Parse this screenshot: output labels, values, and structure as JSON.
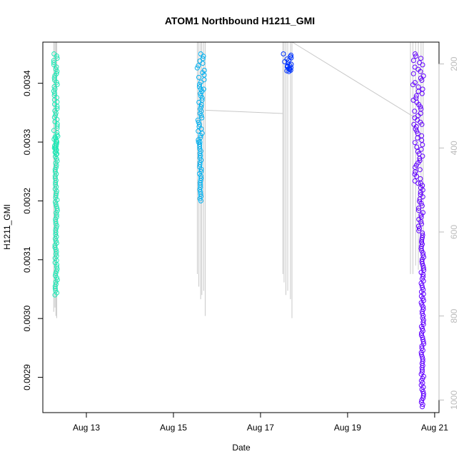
{
  "chart_data": {
    "type": "scatter",
    "title": "ATOM1 Northbound H1211_GMI",
    "xlabel": "Date",
    "ylabel": "H1211_GMI",
    "xlim": [
      "2024-08-12 00:00",
      "2024-08-21 02:24"
    ],
    "ylim": [
      0.00284,
      0.00347
    ],
    "x_ticks": [
      {
        "label": "Aug 13",
        "value": "2024-08-13"
      },
      {
        "label": "Aug 15",
        "value": "2024-08-15"
      },
      {
        "label": "Aug 17",
        "value": "2024-08-17"
      },
      {
        "label": "Aug 19",
        "value": "2024-08-19"
      },
      {
        "label": "Aug 21",
        "value": "2024-08-21"
      }
    ],
    "y_ticks": [
      "0.0029",
      "0.0030",
      "0.0031",
      "0.0032",
      "0.0033",
      "0.0034"
    ],
    "right_axis": {
      "lim": [
        1030,
        148
      ],
      "ticks": [
        "200",
        "400",
        "600",
        "800",
        "1000"
      ],
      "line_color": "#bbbbbb"
    },
    "grid": false,
    "legend": "none",
    "series": [
      {
        "color": "#1de9b6",
        "segments": [
          {
            "t0": "2024-08-12 06:00",
            "t1": "2024-08-12 08:00",
            "top": 0.00345,
            "bottom": 0.00329
          },
          {
            "t0": "2024-08-12 06:30",
            "t1": "2024-08-12 08:15",
            "top": 0.00331,
            "bottom": 0.00328
          },
          {
            "t0": "2024-08-12 06:40",
            "t1": "2024-08-12 08:00",
            "top": 0.00329,
            "bottom": 0.00304
          }
        ]
      },
      {
        "color": "#00b0f0",
        "segments": [
          {
            "t0": "2024-08-15 13:00",
            "t1": "2024-08-15 17:30",
            "top": 0.00345,
            "bottom": 0.00339
          },
          {
            "t0": "2024-08-15 13:30",
            "t1": "2024-08-15 16:00",
            "top": 0.00339,
            "bottom": 0.0033
          },
          {
            "t0": "2024-08-15 14:20",
            "t1": "2024-08-15 15:20",
            "top": 0.0033,
            "bottom": 0.0032
          }
        ]
      },
      {
        "color": "#0033ff",
        "segments": [
          {
            "t0": "2024-08-17 12:30",
            "t1": "2024-08-17 17:30",
            "top": 0.00345,
            "bottom": 0.00343
          },
          {
            "t0": "2024-08-17 14:00",
            "t1": "2024-08-17 17:00",
            "top": 0.00343,
            "bottom": 0.00342
          }
        ]
      },
      {
        "color": "#6200ff",
        "segments": [
          {
            "t0": "2024-08-20 12:00",
            "t1": "2024-08-20 18:00",
            "top": 0.00345,
            "bottom": 0.00333
          },
          {
            "t0": "2024-08-20 13:00",
            "t1": "2024-08-20 17:30",
            "top": 0.00333,
            "bottom": 0.00323
          },
          {
            "t0": "2024-08-20 15:00",
            "t1": "2024-08-20 18:00",
            "top": 0.00323,
            "bottom": 0.00313
          },
          {
            "t0": "2024-08-20 16:30",
            "t1": "2024-08-20 18:00",
            "top": 0.00313,
            "bottom": 0.00285
          }
        ]
      }
    ]
  }
}
